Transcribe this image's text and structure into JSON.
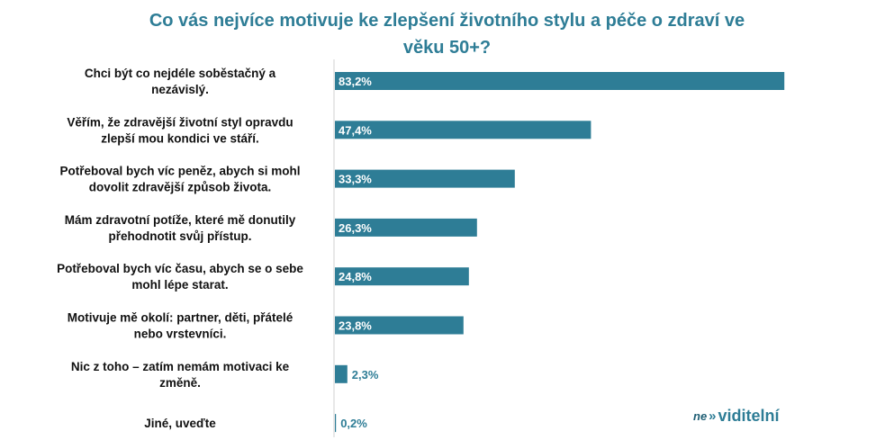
{
  "chart_data": {
    "type": "bar",
    "orientation": "horizontal",
    "title": "Co vás nejvíce motivuje ke zlepšení životního stylu a péče o zdraví ve\nvěku 50+?",
    "categories": [
      "Chci být co nejdéle soběstačný a\nnezávislý.",
      "Věřím, že zdravější životní styl opravdu\nzlepší mou kondici ve stáří.",
      "Potřeboval bych víc peněz, abych si mohl\ndovolit zdravější způsob života.",
      "Mám zdravotní potíže, které mě donutily\npřehodnotit svůj přístup.",
      "Potřeboval bych víc času, abych se o sebe\nmohl lépe starat.",
      "Motivuje mě okolí: partner, děti, přátelé\nnebo vrstevníci.",
      "Nic z toho – zatím nemám motivaci ke\nzměně.",
      "Jiné, uveďte"
    ],
    "values": [
      83.2,
      47.4,
      33.3,
      26.3,
      24.8,
      23.8,
      2.3,
      0.2
    ],
    "value_labels": [
      "83,2%",
      "47,4%",
      "33,3%",
      "26,3%",
      "24,8%",
      "23,8%",
      "2,3%",
      "0,2%"
    ],
    "xlim": [
      0,
      100
    ],
    "grid": false,
    "bar_color": "#2e7d96"
  },
  "brand": {
    "prefix": "ne",
    "arrows": "»",
    "name": "viditelní"
  }
}
